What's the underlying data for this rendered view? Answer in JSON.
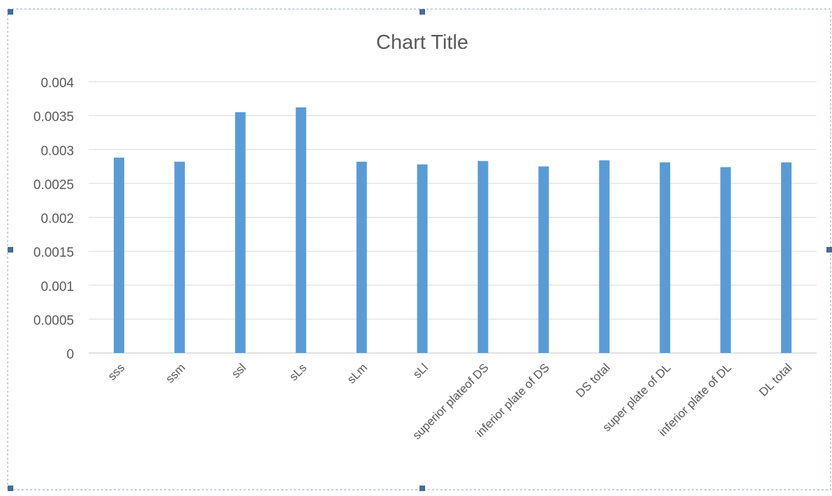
{
  "chart_data": {
    "type": "bar",
    "title": "Chart Title",
    "xlabel": "",
    "ylabel": "",
    "ylim": [
      0,
      0.004
    ],
    "yticks": [
      "0",
      "0.0005",
      "0.001",
      "0.0015",
      "0.002",
      "0.0025",
      "0.003",
      "0.0035",
      "0.004"
    ],
    "grid": true,
    "categories": [
      "sss",
      "ssm",
      "ssl",
      "sLs",
      "sLm",
      "sLl",
      "superior plateof DS",
      "inferior plate of DS",
      "DS total",
      "super plate of DL",
      "inferior plate of DL",
      "DL total"
    ],
    "values": [
      0.00288,
      0.00282,
      0.00355,
      0.00362,
      0.00282,
      0.00278,
      0.00283,
      0.00275,
      0.00284,
      0.00281,
      0.00274,
      0.00281
    ],
    "colors": {
      "bar": "#5b9bd5",
      "grid": "#d9d9d9",
      "text": "#595959",
      "frame": "#8ea3c2",
      "handle": "#4a6c94"
    }
  }
}
